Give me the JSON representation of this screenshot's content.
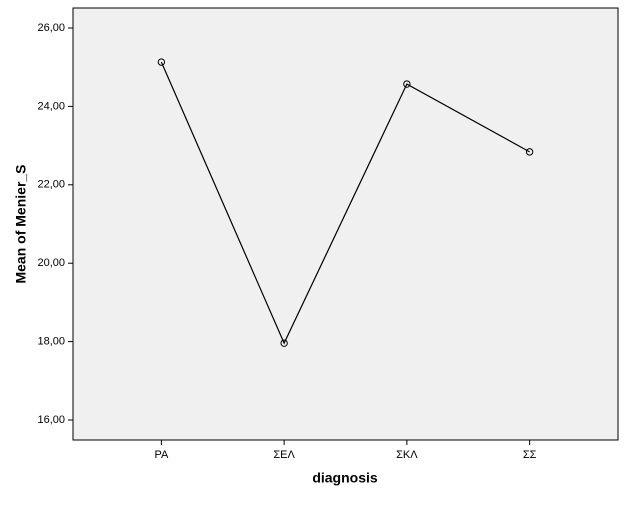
{
  "chart_data": {
    "type": "line",
    "x_label": "diagnosis",
    "y_label": "Mean of Menier_S",
    "categories": [
      "PA",
      "ΣΕΛ",
      "ΣΚΛ",
      "ΣΣ"
    ],
    "series": [
      {
        "name": "Mean of Menier_S",
        "color": "#000000",
        "values": [
          25.13,
          17.96,
          24.57,
          22.84
        ]
      }
    ],
    "ylim": [
      15.49,
      26.51
    ],
    "yticks": [
      {
        "value": 16,
        "label": "16,00"
      },
      {
        "value": 18,
        "label": "18,00"
      },
      {
        "value": 20,
        "label": "20,00"
      },
      {
        "value": 22,
        "label": "22,00"
      },
      {
        "value": 24,
        "label": "24,00"
      },
      {
        "value": 26,
        "label": "26,00"
      }
    ],
    "grid": false
  }
}
